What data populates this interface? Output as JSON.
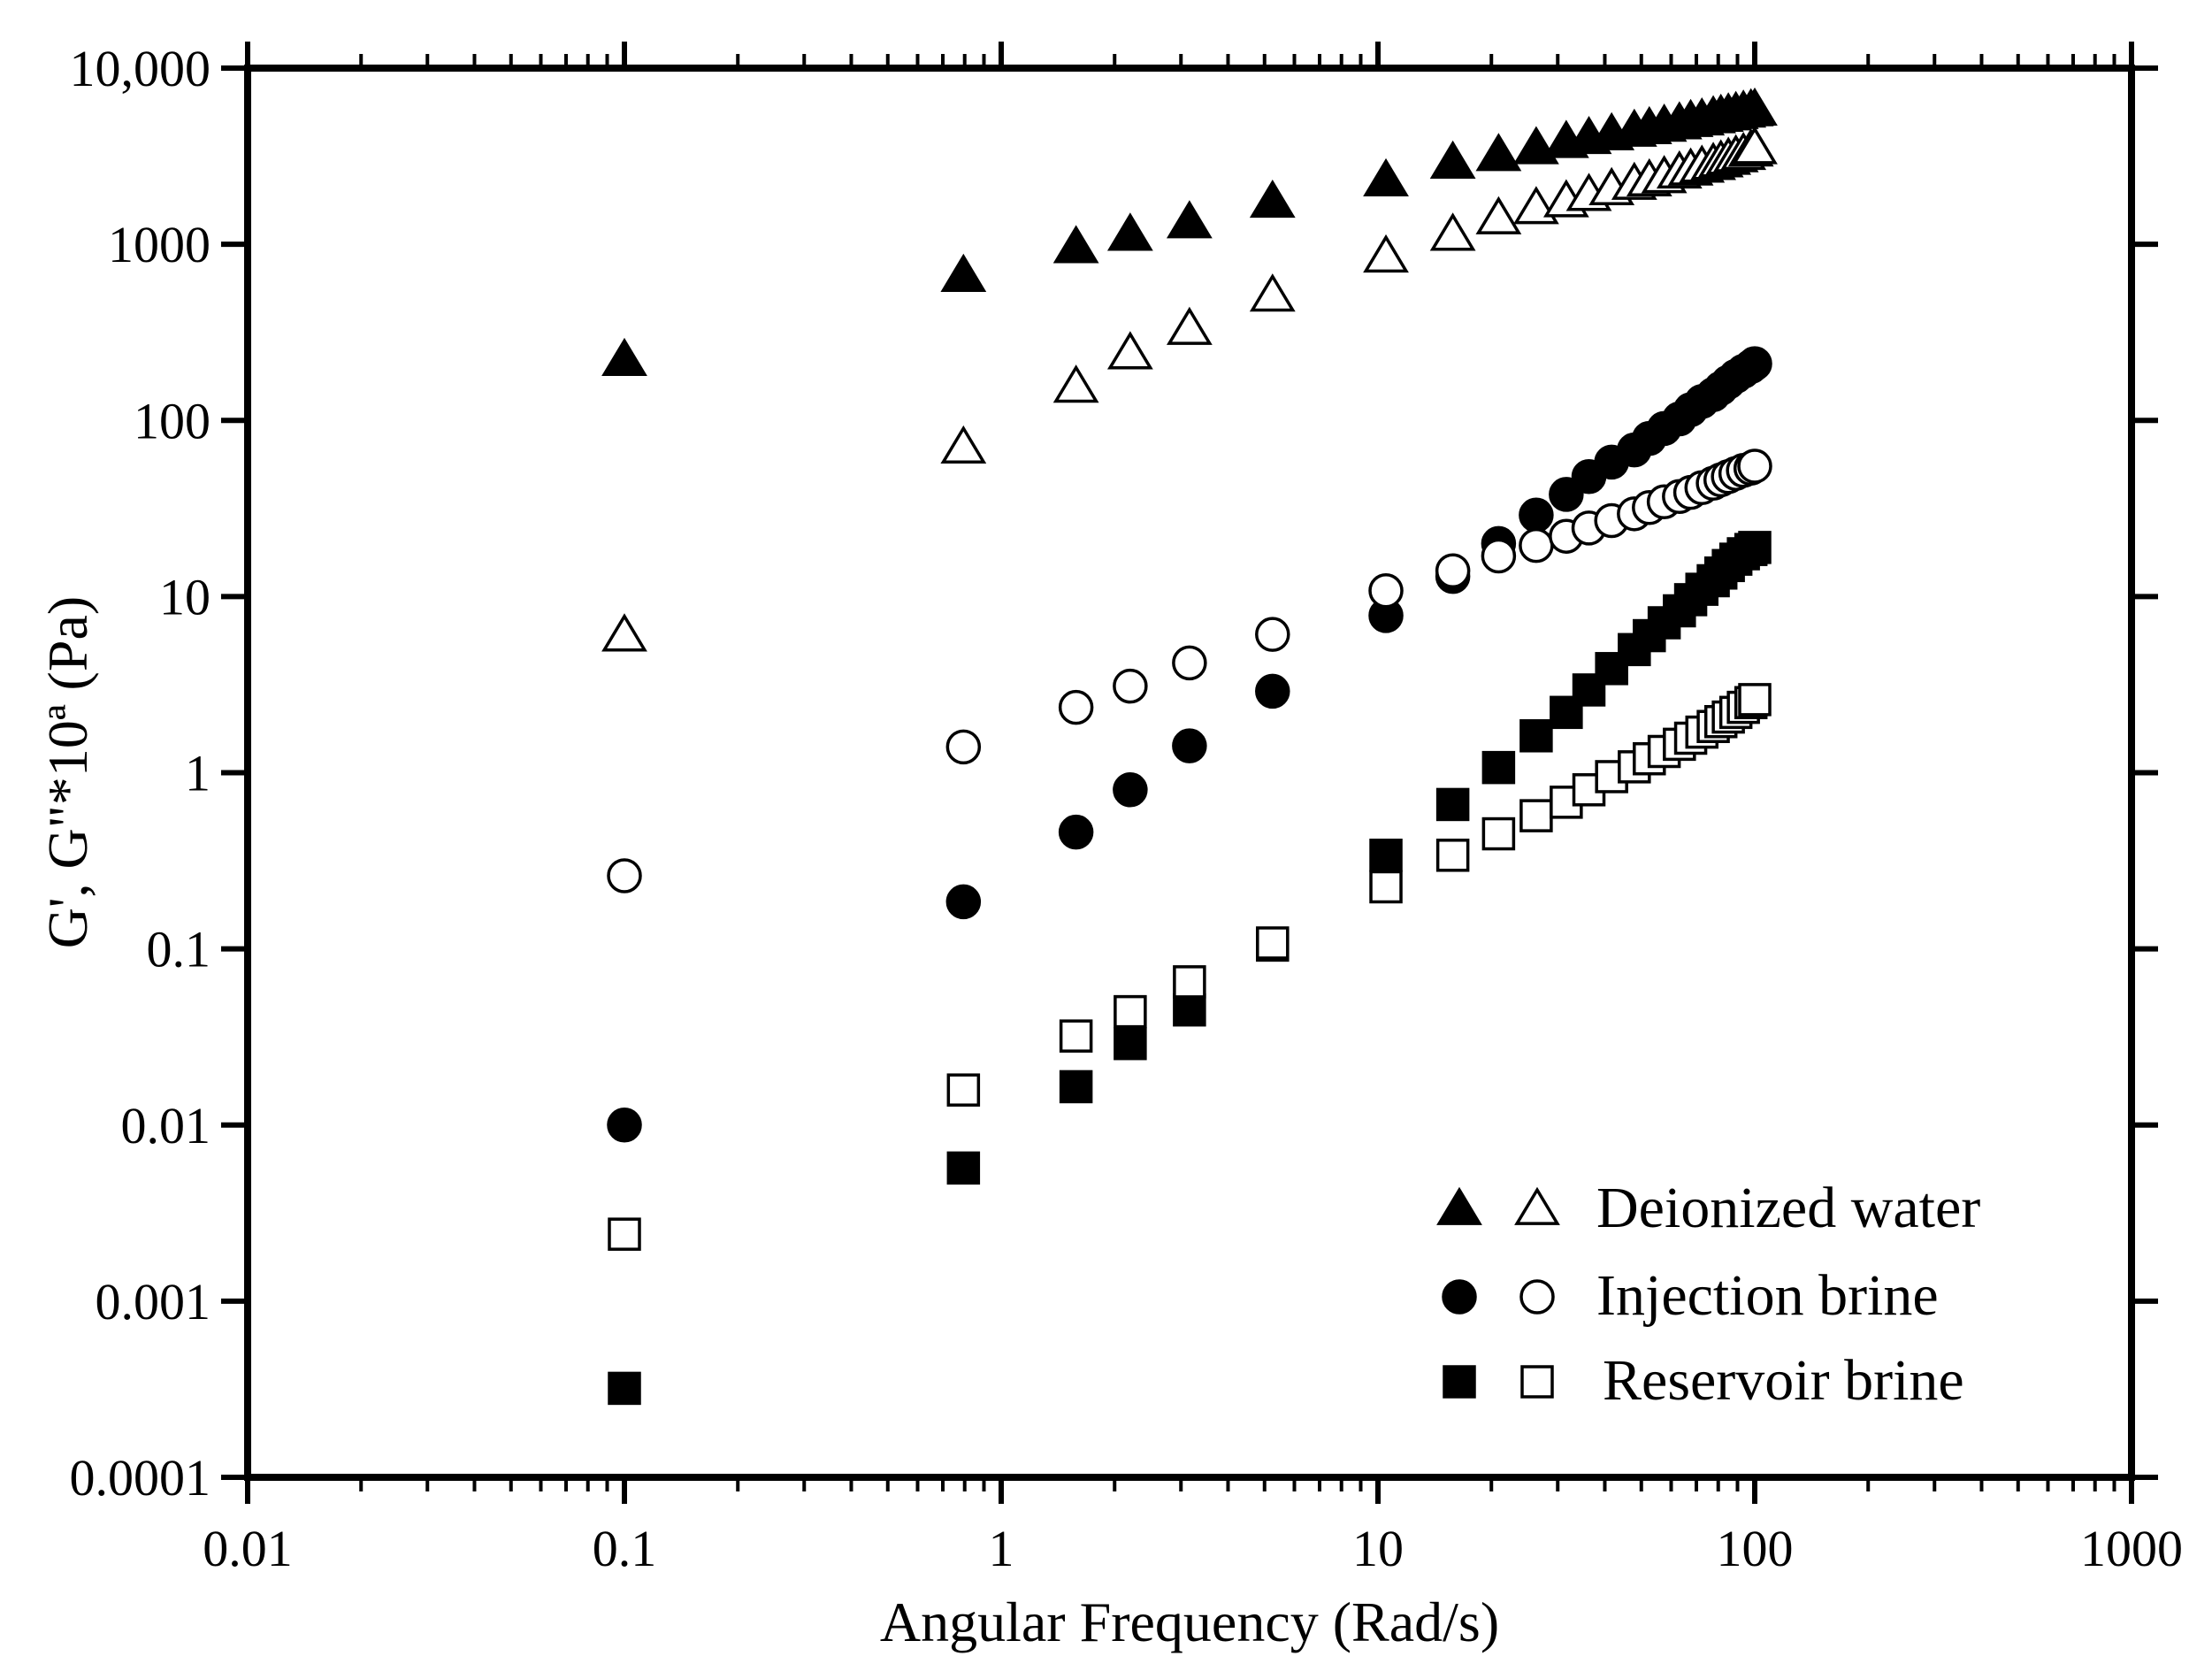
{
  "chart_data": {
    "type": "scatter",
    "title": "",
    "xlabel": "Angular Frequency (Rad/s)",
    "ylabel": "G', G\"*10ª (Pa)",
    "xscale": "log",
    "yscale": "log",
    "xlim": [
      0.01,
      1000
    ],
    "ylim": [
      0.0001,
      10000
    ],
    "x_tick_labels": [
      "0.01",
      "0.1",
      "1",
      "10",
      "100",
      "1000"
    ],
    "y_tick_labels": [
      "0.0001",
      "0.001",
      "0.01",
      "0.1",
      "1",
      "10",
      "100",
      "1000",
      "10,000"
    ],
    "legend_position": "bottom-right",
    "legend": [
      {
        "label": "Deionized water",
        "marker": "triangle"
      },
      {
        "label": "Injection brine",
        "marker": "circle"
      },
      {
        "label": "Reservoir brine",
        "marker": "square"
      }
    ],
    "x": [
      0.1,
      0.794,
      1.58,
      2.2,
      3.16,
      5.25,
      10.5,
      15.8,
      20.9,
      26.3,
      31.6,
      36.3,
      41.7,
      47.9,
      52.5,
      57.5,
      63.1,
      67.6,
      72.4,
      77.6,
      81.3,
      85.1,
      89.1,
      93.3,
      97.7,
      100
    ],
    "series": [
      {
        "name": "Deionized water G'",
        "marker": "triangle",
        "fill": "filled",
        "values": [
          220,
          660,
          960,
          1130,
          1330,
          1740,
          2300,
          2900,
          3200,
          3500,
          3800,
          4000,
          4200,
          4400,
          4550,
          4700,
          4850,
          5000,
          5100,
          5250,
          5350,
          5450,
          5550,
          5650,
          5750,
          5800
        ]
      },
      {
        "name": "Deionized water G\"",
        "marker": "triangle",
        "fill": "open",
        "values": [
          6.0,
          70,
          155,
          240,
          330,
          510,
          850,
          1130,
          1400,
          1600,
          1750,
          1900,
          2050,
          2200,
          2300,
          2400,
          2550,
          2650,
          2750,
          2850,
          2950,
          3050,
          3150,
          3250,
          3400,
          3500
        ]
      },
      {
        "name": "Injection brine G'",
        "marker": "circle",
        "fill": "filled",
        "values": [
          0.01,
          0.185,
          0.46,
          0.8,
          1.42,
          2.9,
          7.8,
          13,
          20,
          29,
          38,
          48,
          58,
          68,
          79,
          90,
          102,
          115,
          128,
          140,
          152,
          165,
          178,
          190,
          202,
          210
        ]
      },
      {
        "name": "Injection brine G\"",
        "marker": "circle",
        "fill": "open",
        "values": [
          0.26,
          1.4,
          2.35,
          3.1,
          4.2,
          6.1,
          10.8,
          14,
          17,
          19.5,
          22,
          24.5,
          27,
          29.5,
          32,
          34.5,
          37,
          39,
          41.5,
          44,
          46,
          48,
          50,
          52,
          53.5,
          55
        ]
      },
      {
        "name": "Reservoir brine G'",
        "marker": "square",
        "fill": "filled",
        "values": [
          0.00032,
          0.0057,
          0.0165,
          0.029,
          0.045,
          0.105,
          0.34,
          0.66,
          1.07,
          1.62,
          2.2,
          2.95,
          3.9,
          5.0,
          6.0,
          7.1,
          8.3,
          9.6,
          11,
          12.3,
          13.6,
          15,
          16.3,
          17.5,
          18.5,
          19
        ]
      },
      {
        "name": "Reservoir brine G\"",
        "marker": "square",
        "fill": "open",
        "values": [
          0.0024,
          0.0158,
          0.032,
          0.044,
          0.065,
          0.108,
          0.225,
          0.34,
          0.45,
          0.57,
          0.68,
          0.8,
          0.95,
          1.08,
          1.2,
          1.32,
          1.45,
          1.57,
          1.7,
          1.83,
          1.95,
          2.07,
          2.2,
          2.35,
          2.5,
          2.6
        ]
      }
    ]
  }
}
